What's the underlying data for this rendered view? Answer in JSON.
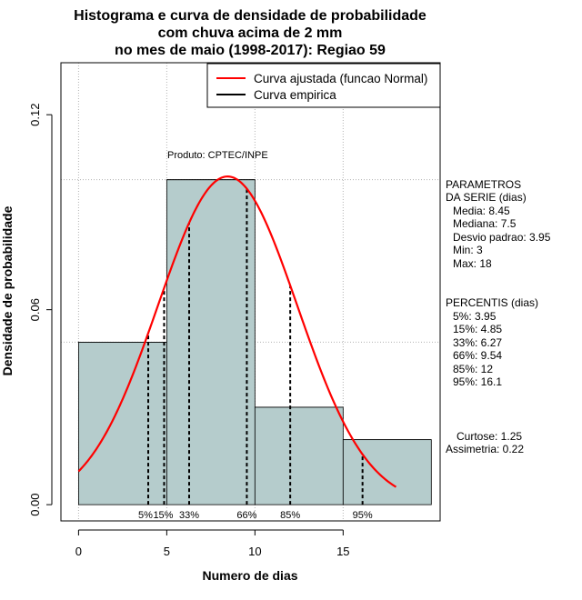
{
  "chart_data": {
    "type": "histogram",
    "title_lines": [
      "Histograma e curva de densidade de probabilidade",
      "com chuva acima de 2 mm",
      "no mes de maio (1998-2017): Regiao 59"
    ],
    "xlabel": "Numero de dias",
    "ylabel": "Densidade de probabilidade",
    "xlim": [
      -1,
      20.5
    ],
    "ylim": [
      -0.005,
      0.136
    ],
    "x_ticks": [
      0,
      5,
      10,
      15
    ],
    "y_ticks": [
      0.0,
      0.06,
      0.12
    ],
    "y_tick_labels": [
      "0.00",
      "0.06",
      "0.12"
    ],
    "grid": true,
    "bins": [
      {
        "start": 0,
        "end": 5,
        "density": 0.05
      },
      {
        "start": 5,
        "end": 10,
        "density": 0.1
      },
      {
        "start": 10,
        "end": 15,
        "density": 0.03
      },
      {
        "start": 15,
        "end": 20,
        "density": 0.02
      }
    ],
    "fitted_curve": {
      "name": "Curva ajustada (funcao Normal)",
      "distribution": "normal",
      "mean": 8.45,
      "sd": 3.95,
      "x_range": [
        0,
        18
      ],
      "color": "#ff0000"
    },
    "empirical_curve": {
      "name": "Curva empirica",
      "color": "#000000"
    },
    "legend_position": "top-right",
    "percentile_lines": [
      {
        "label": "5%",
        "x": 3.95
      },
      {
        "label": "15%",
        "x": 4.85
      },
      {
        "label": "33%",
        "x": 6.27
      },
      {
        "label": "66%",
        "x": 9.54
      },
      {
        "label": "85%",
        "x": 12
      },
      {
        "label": "95%",
        "x": 16.1
      }
    ],
    "annotation": "Produto: CPTEC/INPE",
    "colors": {
      "bar_fill": "#b5cccc",
      "grid": "#b3b3b3"
    }
  },
  "side_panel": {
    "parametros": [
      "PARAMETROS",
      "DA SERIE (dias)",
      "Media: 8.45",
      "Mediana: 7.5",
      "Desvio padrao: 3.95",
      "Min: 3",
      "Max: 18"
    ],
    "percentis": [
      "PERCENTIS (dias)",
      "5%: 3.95",
      "15%: 4.85",
      "33%: 6.27",
      "66%: 9.54",
      "85%: 12",
      "95%: 16.1"
    ],
    "curtose": "Curtose: 1.25",
    "assimetria": "Assimetria: 0.22"
  }
}
